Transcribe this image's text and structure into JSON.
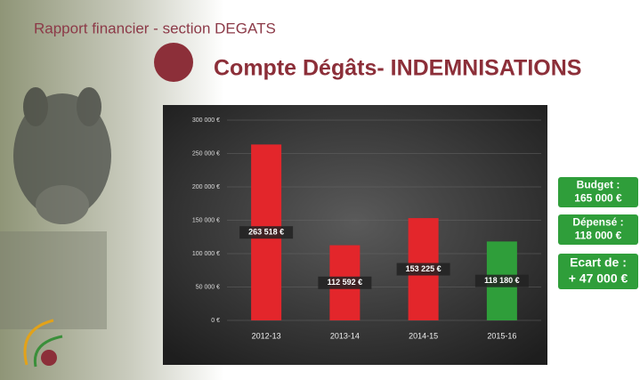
{
  "chart_data": {
    "type": "bar",
    "header": "Rapport financier - section DEGATS",
    "title": "Compte Dégâts- INDEMNISATIONS",
    "categories": [
      "2012-13",
      "2013-14",
      "2014-15",
      "2015-16"
    ],
    "values": [
      263518,
      112592,
      153225,
      118180
    ],
    "value_labels": [
      "263 518 €",
      "112 592 €",
      "153 225 €",
      "118 180 €"
    ],
    "colors": [
      "#e3262b",
      "#e3262b",
      "#e3262b",
      "#2f9e3a"
    ],
    "ylim": [
      0,
      300000
    ],
    "yticks": [
      {
        "value": 0,
        "label": "0 €"
      },
      {
        "value": 50000,
        "label": "50 000 €"
      },
      {
        "value": 100000,
        "label": "100 000 €"
      },
      {
        "value": 150000,
        "label": "150 000 €"
      },
      {
        "value": 200000,
        "label": "200 000 €"
      },
      {
        "value": 250000,
        "label": "250 000 €"
      },
      {
        "value": 300000,
        "label": "300 000 €"
      }
    ],
    "grid": true,
    "annotations": [
      {
        "lines": [
          "Budget :",
          "165 000 €"
        ]
      },
      {
        "lines": [
          "Dépensé :",
          "118 000 €"
        ]
      },
      {
        "lines": [
          "Ecart de :",
          "+ 47 000 €"
        ]
      }
    ]
  }
}
